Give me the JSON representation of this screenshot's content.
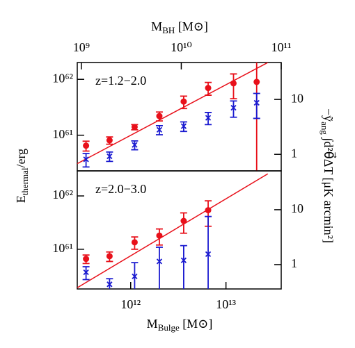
{
  "chart_data": [
    {
      "type": "scatter",
      "log": true,
      "annotation": "z=1.2−2.0",
      "ylabel": {
        "main": "E",
        "sub": "thermal",
        "unit": "/erg"
      },
      "y2label": {
        "main": "−ỹ",
        "sub": "ang",
        "unit": " ∫d²θ⃗ΔT [μK arcmin²]"
      },
      "x2label": {
        "main": "M",
        "sub": "BH",
        "unit": " [M⊙]"
      },
      "xlim": [
        275000000000.0,
        38000000000000.0
      ],
      "ylim": [
        2.3e+60,
        2e+62
      ],
      "y2lim": [
        0.5,
        47
      ],
      "x2lim": [
        910000000.0,
        100000000000.0
      ],
      "x2ticks": [
        {
          "value": 1000000000.0,
          "label": "10⁹"
        },
        {
          "value": 10000000000.0,
          "label": "10¹⁰"
        },
        {
          "value": 100000000000.0,
          "label": "10¹¹"
        }
      ],
      "yticks": [
        {
          "value": 1e+61,
          "label": "10⁶¹"
        },
        {
          "value": 1e+62,
          "label": "10⁶²"
        }
      ],
      "y2ticks": [
        1,
        10
      ],
      "series": [
        {
          "color": "#e8101a",
          "marker": "circle",
          "x": [
            340000000000.0,
            600000000000.0,
            1100000000000.0,
            2000000000000.0,
            3600000000000.0,
            6500000000000.0,
            12000000000000.0,
            21000000000000.0
          ],
          "values": [
            6.5e+60,
            8.1e+60,
            1.4e+61,
            2.2e+61,
            4e+61,
            7e+61,
            8.5e+61,
            9e+61
          ],
          "errors": [
            1.3e+60,
            1.2e+60,
            1.5e+60,
            4e+60,
            1e+61,
            1.8e+61,
            4e+61,
            1.2e+62
          ]
        },
        {
          "color": "#1a1ad0",
          "marker": "x",
          "x": [
            340000000000.0,
            600000000000.0,
            1100000000000.0,
            2000000000000.0,
            3600000000000.0,
            6500000000000.0,
            12000000000000.0,
            21000000000000.0
          ],
          "values": [
            3.7e+60,
            4.2e+60,
            6.7e+60,
            1.25e+61,
            1.45e+61,
            2.05e+61,
            3.1e+61,
            3.8e+61
          ],
          "errors": [
            1e+60,
            8e+59,
            1.2e+60,
            2.3e+60,
            2.8e+60,
            5e+60,
            1e+61,
            1.8e+61
          ]
        }
      ],
      "fit": {
        "color": "#e8101a",
        "x": [
          275000000000.0,
          27500000000000.0
        ],
        "values": [
          3.1e+60,
          2e+62
        ]
      }
    },
    {
      "type": "scatter",
      "log": true,
      "annotation": "z=2.0−3.0",
      "xlabel": {
        "main": "M",
        "sub": "Bulge",
        "unit": " [M⊙]"
      },
      "xlim": [
        275000000000.0,
        38000000000000.0
      ],
      "ylim": [
        1.8e+60,
        2.95e+62
      ],
      "y2lim": [
        0.36,
        51
      ],
      "xticks": [
        {
          "value": 1000000000000.0,
          "label": "10¹²"
        },
        {
          "value": 10000000000000.0,
          "label": "10¹³"
        }
      ],
      "yticks": [
        {
          "value": 1e+61,
          "label": "10⁶¹"
        },
        {
          "value": 1e+62,
          "label": "10⁶²"
        }
      ],
      "y2ticks": [
        1,
        10
      ],
      "series": [
        {
          "color": "#e8101a",
          "marker": "circle",
          "x": [
            340000000000.0,
            600000000000.0,
            1100000000000.0,
            2000000000000.0,
            3600000000000.0,
            6500000000000.0
          ],
          "values": [
            6.6e+60,
            7.4e+60,
            1.35e+61,
            1.8e+61,
            3.4e+61,
            5.4e+61
          ],
          "errors": [
            1.2e+60,
            1.5e+60,
            3.5e+60,
            6e+60,
            1.4e+61,
            2.7e+61
          ]
        },
        {
          "color": "#1a1ad0",
          "marker": "x",
          "x": [
            340000000000.0,
            600000000000.0,
            1100000000000.0,
            2000000000000.0,
            3600000000000.0,
            6500000000000.0
          ],
          "values": [
            3.7e+60,
            2.2e+60,
            3.1e+60,
            5.9e+60,
            6.2e+60,
            8.1e+60
          ],
          "errors": [
            1e+60,
            6e+59,
            2.5e+60,
            5e+60,
            5.5e+60,
            3.3e+61
          ]
        }
      ],
      "fit": {
        "color": "#e8101a",
        "x": [
          275000000000.0,
          27500000000000.0
        ],
        "values": [
          1.9e+60,
          2.6e+62
        ]
      }
    }
  ]
}
